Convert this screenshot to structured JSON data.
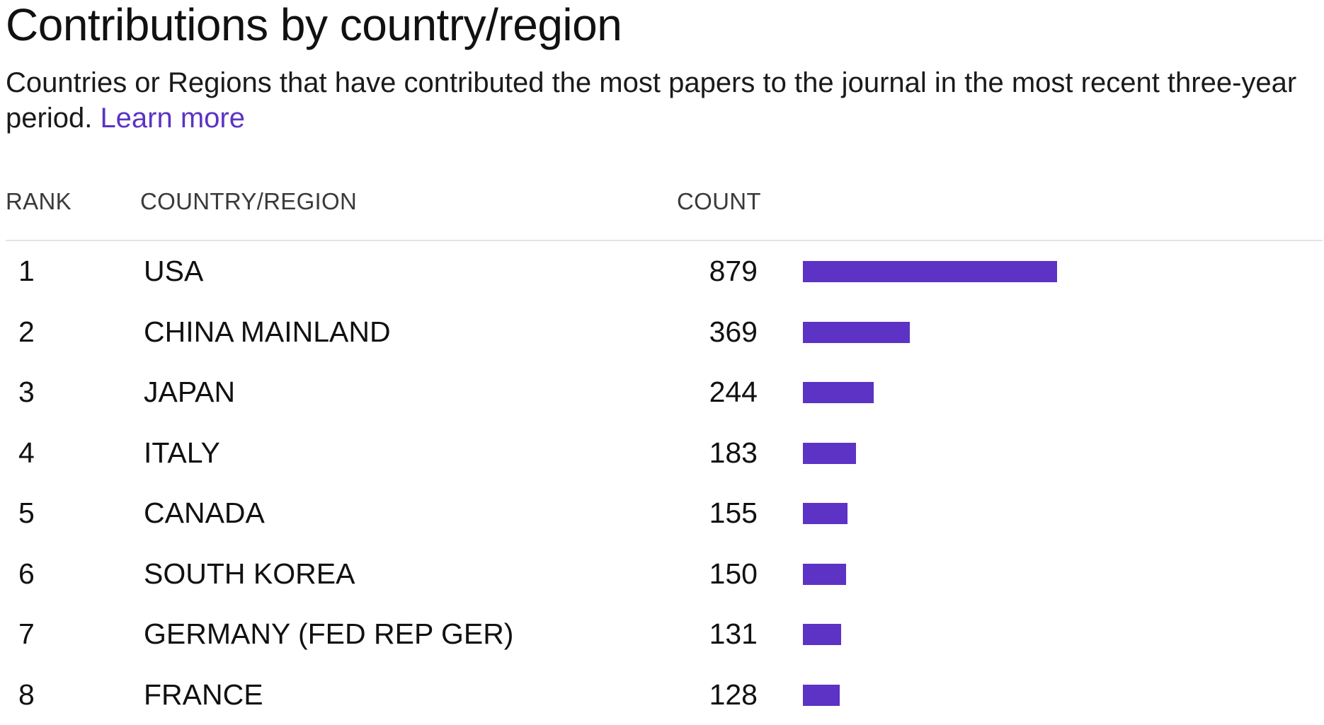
{
  "header": {
    "title": "Contributions by country/region",
    "description": "Countries or Regions that have contributed the most papers to the journal in the most recent three-year period.",
    "learn_more_label": "Learn more"
  },
  "table": {
    "columns": {
      "rank": "RANK",
      "country": "COUNTRY/REGION",
      "count": "COUNT"
    },
    "bar_color": "#5c33c4",
    "rows": [
      {
        "rank": "1",
        "country": "USA",
        "count": "879",
        "value": 879
      },
      {
        "rank": "2",
        "country": "CHINA MAINLAND",
        "count": "369",
        "value": 369
      },
      {
        "rank": "3",
        "country": "JAPAN",
        "count": "244",
        "value": 244
      },
      {
        "rank": "4",
        "country": "ITALY",
        "count": "183",
        "value": 183
      },
      {
        "rank": "5",
        "country": "CANADA",
        "count": "155",
        "value": 155
      },
      {
        "rank": "6",
        "country": "SOUTH KOREA",
        "count": "150",
        "value": 150
      },
      {
        "rank": "7",
        "country": "GERMANY (FED REP GER)",
        "count": "131",
        "value": 131
      },
      {
        "rank": "8",
        "country": "FRANCE",
        "count": "128",
        "value": 128
      }
    ]
  }
}
